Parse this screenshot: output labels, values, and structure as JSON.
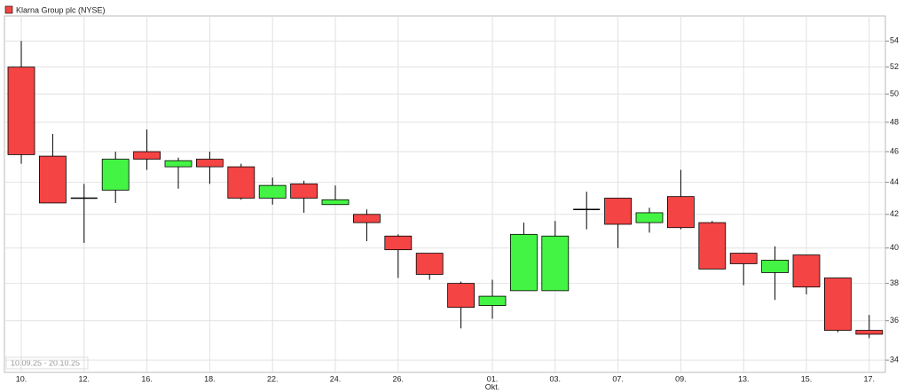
{
  "chart_data": {
    "type": "candlestick",
    "series": [
      {
        "name": "Klarna Group plc (NYSE)",
        "color": "#f44444",
        "up_color": "#44f444",
        "open": [
          52,
          45.7,
          43.0,
          43.5,
          46.0,
          45.0,
          45.5,
          45.0,
          43.0,
          43.9,
          42.6,
          42.0,
          40.7,
          39.7,
          38.0,
          36.8,
          37.6,
          37.6,
          42.3,
          43.0,
          41.5,
          43.1,
          41.5,
          39.7,
          38.6,
          39.6,
          38.3,
          35.5
        ],
        "high": [
          54,
          47.2,
          43.9,
          46.0,
          47.5,
          45.6,
          46.0,
          45.2,
          44.3,
          44.1,
          43.8,
          42.3,
          40.8,
          39.7,
          38.1,
          38.2,
          41.5,
          41.6,
          43.4,
          43.0,
          42.4,
          44.8,
          41.6,
          39.7,
          40.1,
          39.6,
          38.3,
          36.3
        ],
        "low": [
          45.2,
          42.7,
          40.3,
          42.7,
          44.8,
          43.6,
          43.9,
          42.9,
          42.6,
          42.1,
          42.6,
          40.4,
          38.3,
          38.2,
          35.6,
          36.1,
          37.6,
          37.6,
          41.1,
          40.0,
          40.9,
          41.1,
          38.8,
          37.9,
          37.1,
          37.4,
          35.4,
          35.1
        ],
        "close": [
          45.8,
          42.7,
          43.0,
          45.5,
          45.5,
          45.4,
          45.0,
          43.0,
          43.8,
          43.0,
          42.9,
          41.5,
          39.9,
          38.5,
          36.7,
          37.3,
          40.8,
          40.7,
          42.3,
          41.4,
          42.1,
          41.2,
          38.8,
          39.1,
          39.3,
          37.8,
          35.5,
          35.3
        ]
      }
    ],
    "categories": [
      "10.",
      null,
      "12.",
      null,
      "16.",
      null,
      "18.",
      null,
      "22.",
      null,
      "24.",
      null,
      "26.",
      null,
      null,
      "01.",
      null,
      "03.",
      null,
      "07.",
      null,
      "09.",
      null,
      "13.",
      null,
      "15.",
      null,
      "17."
    ],
    "month_labels": [
      null,
      null,
      null,
      null,
      null,
      null,
      null,
      null,
      null,
      null,
      null,
      null,
      null,
      null,
      null,
      "Okt.",
      null,
      null,
      null,
      null,
      null,
      null,
      null,
      null,
      null,
      null,
      null,
      null
    ],
    "date_range": "10.09.25 - 20.10.25",
    "ylim": [
      33.4,
      56
    ],
    "yticks": [
      34,
      36,
      38,
      40,
      42,
      44,
      46,
      48,
      50,
      52,
      54
    ],
    "log_scale": true,
    "grid": true
  }
}
